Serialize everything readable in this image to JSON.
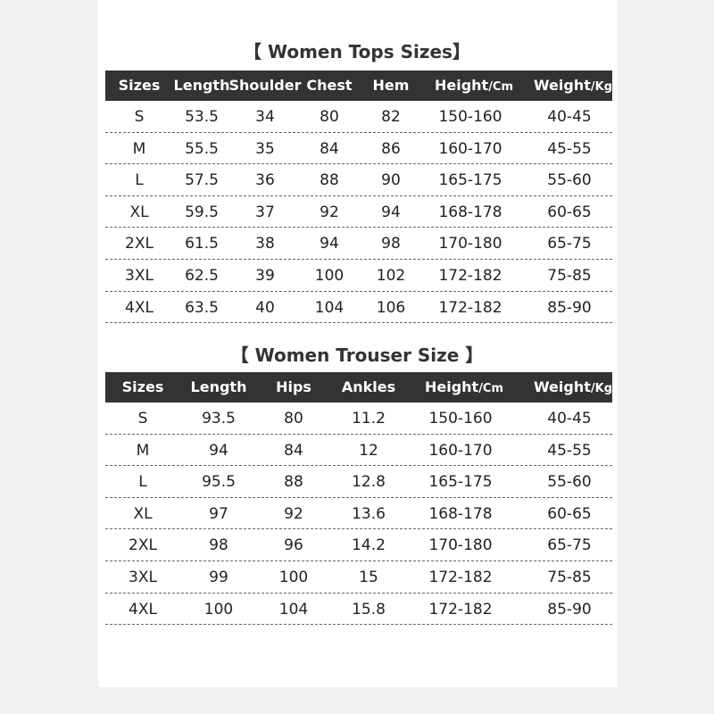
{
  "tables": [
    {
      "title": "【 Women Tops Sizes】",
      "headers": [
        "Sizes",
        "Length",
        "Shoulder",
        "Chest",
        "Hem",
        {
          "label": "Height",
          "unit": "/Cm"
        },
        {
          "label": "Weight",
          "unit": "/Kg"
        }
      ],
      "rows": [
        [
          "S",
          "53.5",
          "34",
          "80",
          "82",
          "150-160",
          "40-45"
        ],
        [
          "M",
          "55.5",
          "35",
          "84",
          "86",
          "160-170",
          "45-55"
        ],
        [
          "L",
          "57.5",
          "36",
          "88",
          "90",
          "165-175",
          "55-60"
        ],
        [
          "XL",
          "59.5",
          "37",
          "92",
          "94",
          "168-178",
          "60-65"
        ],
        [
          "2XL",
          "61.5",
          "38",
          "94",
          "98",
          "170-180",
          "65-75"
        ],
        [
          "3XL",
          "62.5",
          "39",
          "100",
          "102",
          "172-182",
          "75-85"
        ],
        [
          "4XL",
          "63.5",
          "40",
          "104",
          "106",
          "172-182",
          "85-90"
        ]
      ]
    },
    {
      "title": "【 Women Trouser Size 】",
      "headers": [
        "Sizes",
        "Length",
        "Hips",
        "Ankles",
        {
          "label": "Height",
          "unit": "/Cm"
        },
        {
          "label": "Weight",
          "unit": "/Kg"
        }
      ],
      "rows": [
        [
          "S",
          "93.5",
          "80",
          "11.2",
          "150-160",
          "40-45"
        ],
        [
          "M",
          "94",
          "84",
          "12",
          "160-170",
          "45-55"
        ],
        [
          "L",
          "95.5",
          "88",
          "12.8",
          "165-175",
          "55-60"
        ],
        [
          "XL",
          "97",
          "92",
          "13.6",
          "168-178",
          "60-65"
        ],
        [
          "2XL",
          "98",
          "96",
          "14.2",
          "170-180",
          "65-75"
        ],
        [
          "3XL",
          "99",
          "100",
          "15",
          "172-182",
          "75-85"
        ],
        [
          "4XL",
          "100",
          "104",
          "15.8",
          "172-182",
          "85-90"
        ]
      ]
    }
  ]
}
